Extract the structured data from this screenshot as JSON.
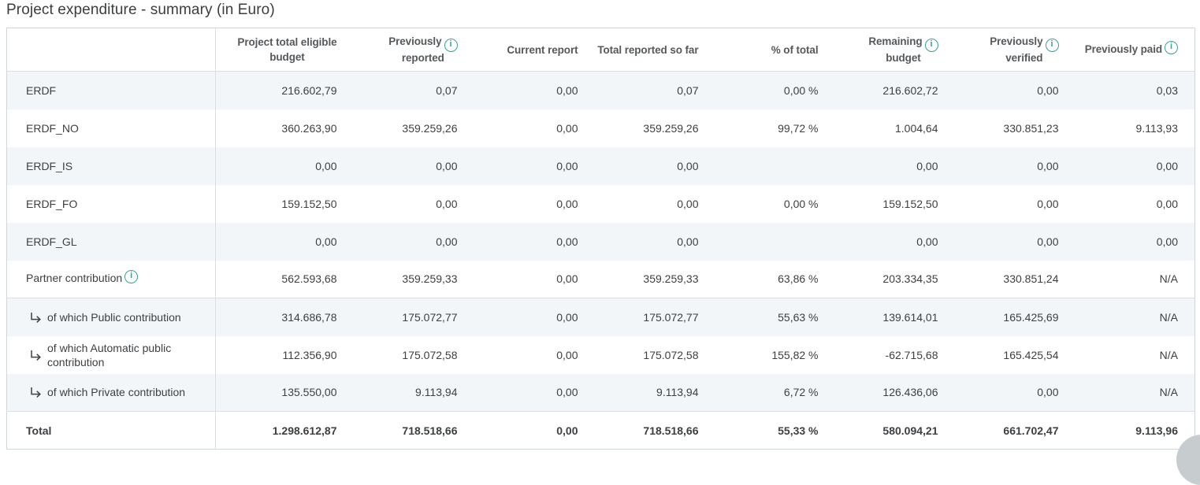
{
  "title": "Project expenditure - summary (in Euro)",
  "colors": {
    "accent_teal": "#3d9e95",
    "stripe": "#f2f6f9",
    "inner_border": "#d9dfe2",
    "outer_border": "#cfd6da",
    "header_text": "#55595c",
    "cell_text": "#3c4043",
    "title_text": "#3a3d3f",
    "corner_widget_gray": "#c7cccf"
  },
  "icons": {
    "info_glyph": "i",
    "sub_item_arrow": "down-right-arrow"
  },
  "table": {
    "columns": [
      {
        "lines": [
          "Project total eligible",
          "budget"
        ],
        "info": false
      },
      {
        "lines": [
          "Previously",
          "reported"
        ],
        "info": true
      },
      {
        "lines": [
          "Current report"
        ],
        "info": false
      },
      {
        "lines": [
          "Total reported so far"
        ],
        "info": false
      },
      {
        "lines": [
          "% of total"
        ],
        "info": false
      },
      {
        "lines": [
          "Remaining",
          "budget"
        ],
        "info": true
      },
      {
        "lines": [
          "Previously",
          "verified"
        ],
        "info": true
      },
      {
        "lines": [
          "Previously paid"
        ],
        "info": true,
        "raised_icon": true
      }
    ],
    "rows": [
      {
        "label": "ERDF",
        "striped": true,
        "values": [
          "216.602,79",
          "0,07",
          "0,00",
          "0,07",
          "0,00 %",
          "216.602,72",
          "0,00",
          "0,03"
        ]
      },
      {
        "label": "ERDF_NO",
        "striped": false,
        "values": [
          "360.263,90",
          "359.259,26",
          "0,00",
          "359.259,26",
          "99,72 %",
          "1.004,64",
          "330.851,23",
          "9.113,93"
        ]
      },
      {
        "label": "ERDF_IS",
        "striped": true,
        "values": [
          "0,00",
          "0,00",
          "0,00",
          "0,00",
          "",
          "0,00",
          "0,00",
          "0,00"
        ]
      },
      {
        "label": "ERDF_FO",
        "striped": false,
        "values": [
          "159.152,50",
          "0,00",
          "0,00",
          "0,00",
          "0,00 %",
          "159.152,50",
          "0,00",
          "0,00"
        ]
      },
      {
        "label": "ERDF_GL",
        "striped": true,
        "values": [
          "0,00",
          "0,00",
          "0,00",
          "0,00",
          "",
          "0,00",
          "0,00",
          "0,00"
        ]
      },
      {
        "label": "Partner contribution",
        "striped": false,
        "info": true,
        "section_end": true,
        "values": [
          "562.593,68",
          "359.259,33",
          "0,00",
          "359.259,33",
          "63,86 %",
          "203.334,35",
          "330.851,24",
          "N/A"
        ]
      },
      {
        "label": "of which Public contribution",
        "striped": true,
        "indent": true,
        "values": [
          "314.686,78",
          "175.072,77",
          "0,00",
          "175.072,77",
          "55,63 %",
          "139.614,01",
          "165.425,69",
          "N/A"
        ]
      },
      {
        "label": "of which Automatic public contribution",
        "striped": false,
        "indent": true,
        "values": [
          "112.356,90",
          "175.072,58",
          "0,00",
          "175.072,58",
          "155,82 %",
          "-62.715,68",
          "165.425,54",
          "N/A"
        ]
      },
      {
        "label": "of which Private contribution",
        "striped": true,
        "indent": true,
        "values": [
          "135.550,00",
          "9.113,94",
          "0,00",
          "9.113,94",
          "6,72 %",
          "126.436,06",
          "0,00",
          "N/A"
        ]
      },
      {
        "label": "Total",
        "striped": false,
        "total": true,
        "values": [
          "1.298.612,87",
          "718.518,66",
          "0,00",
          "718.518,66",
          "55,33 %",
          "580.094,21",
          "661.702,47",
          "9.113,96"
        ]
      }
    ]
  }
}
